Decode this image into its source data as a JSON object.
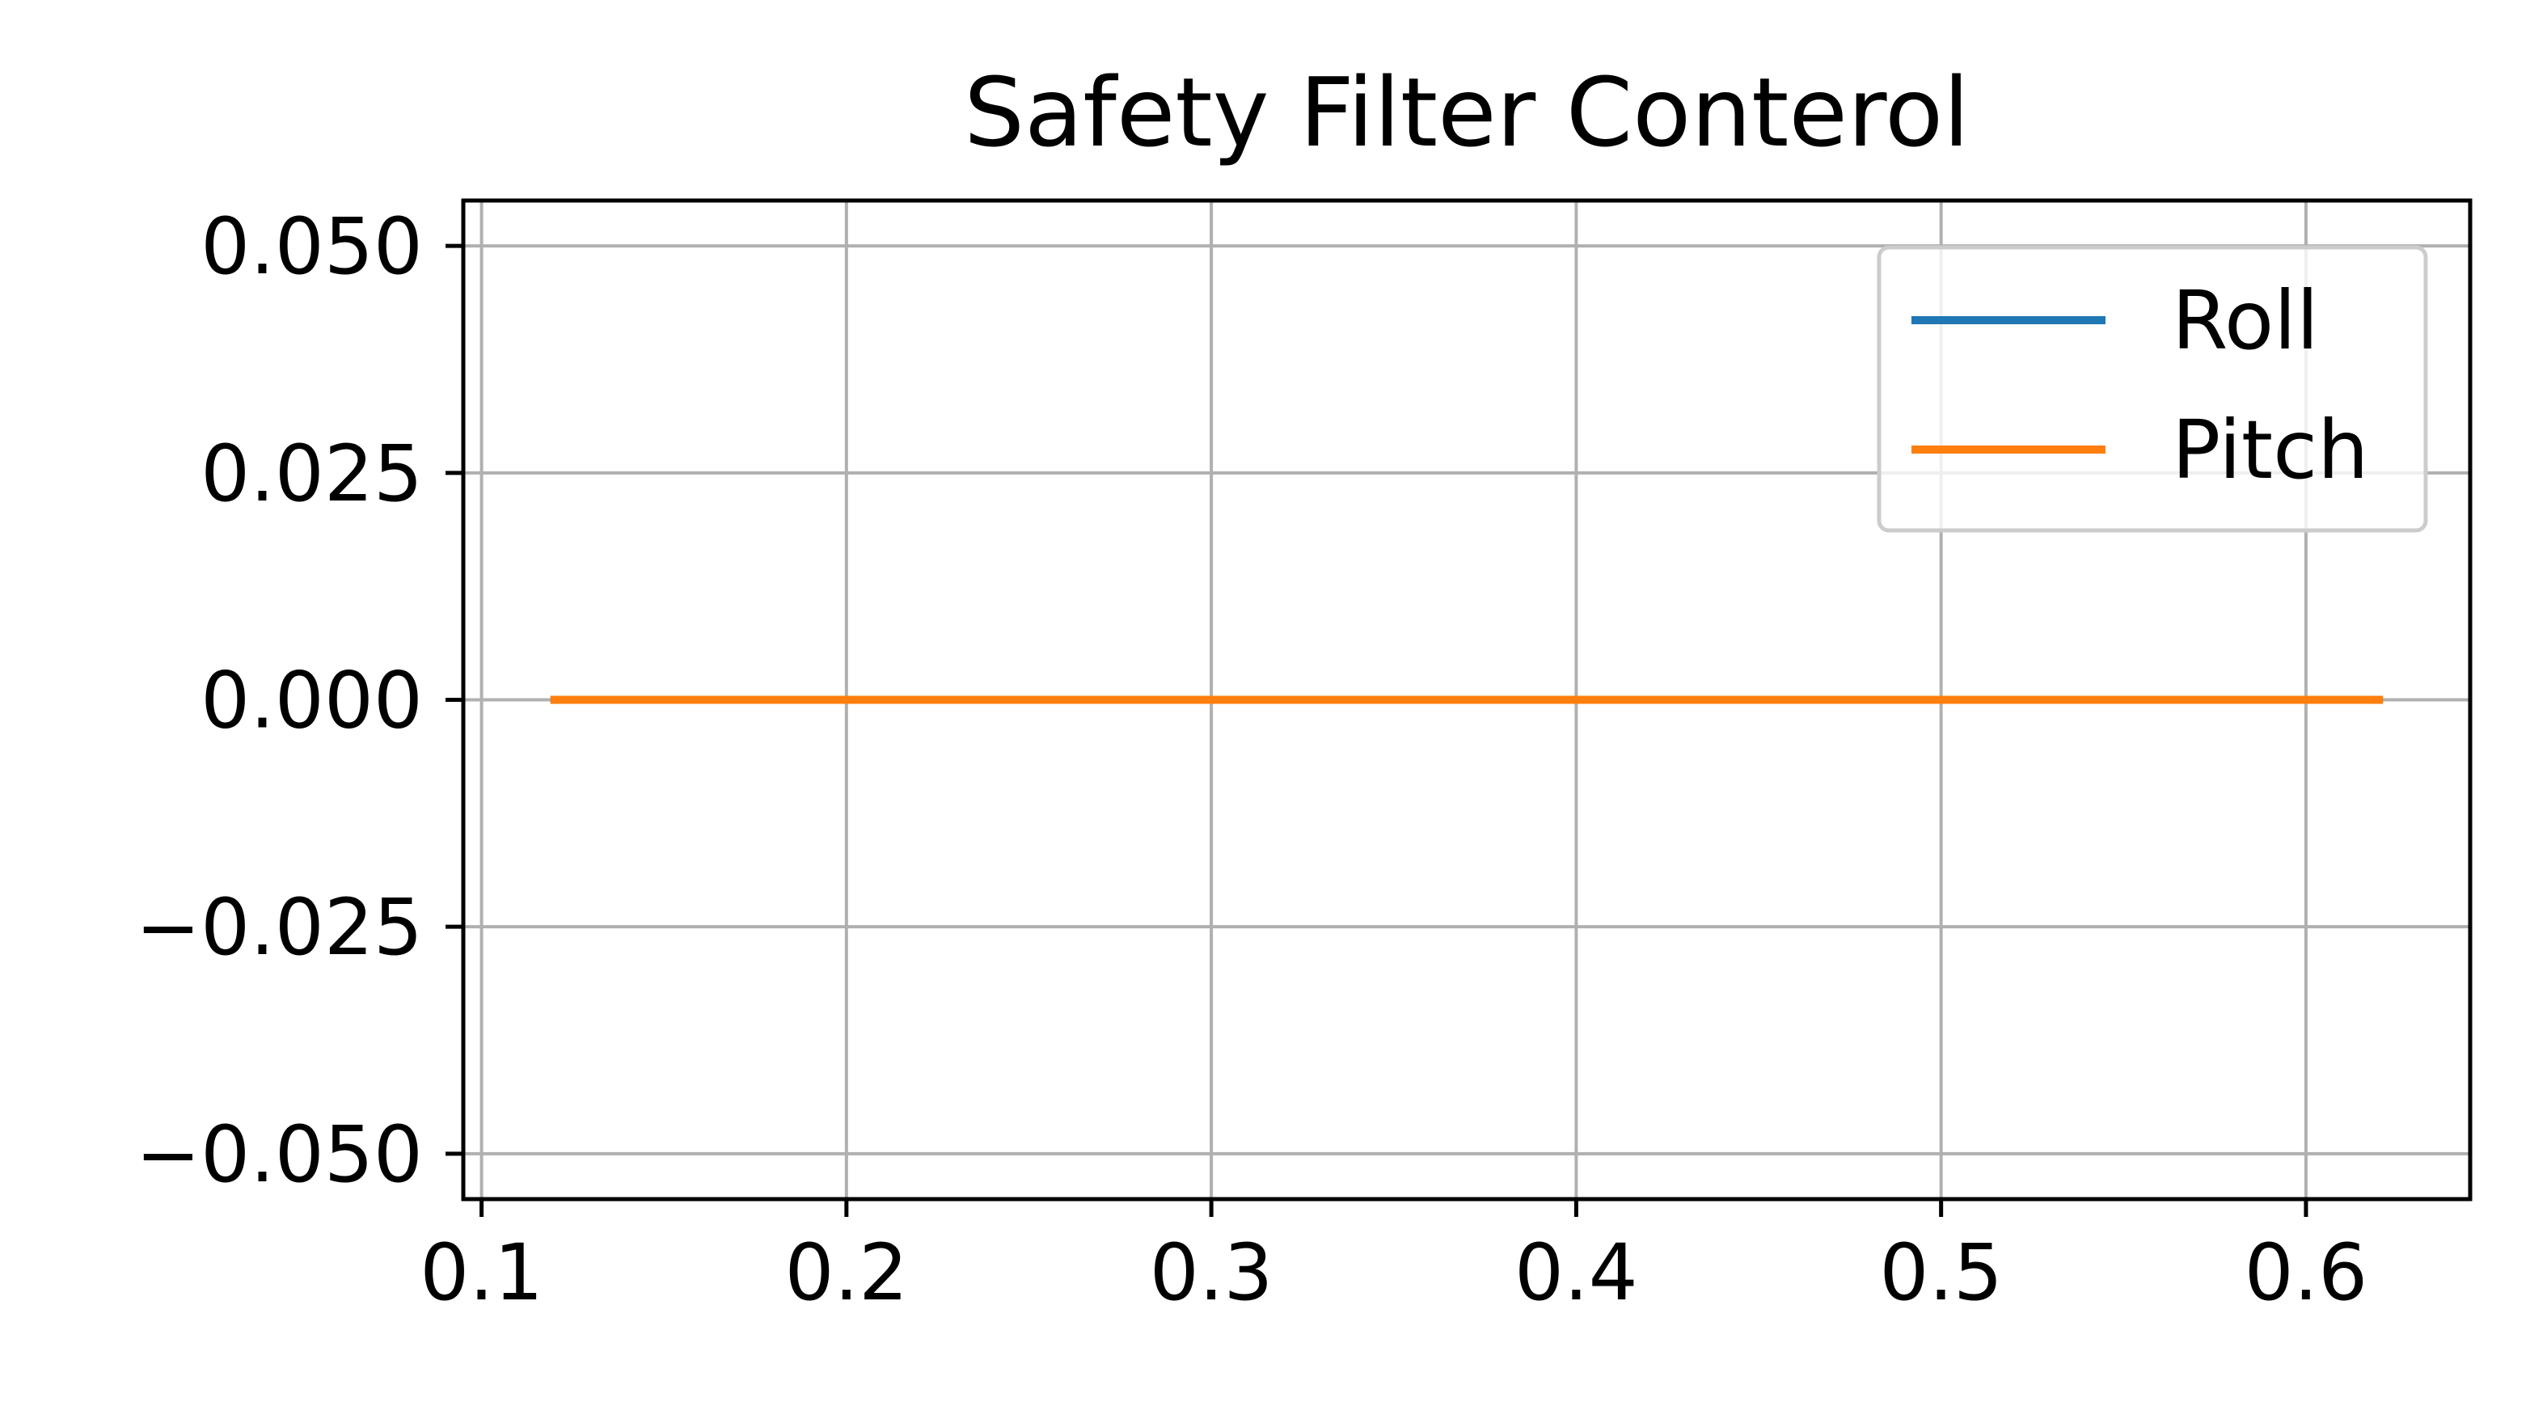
{
  "chart_data": {
    "type": "line",
    "title": "Safety Filter Conterol",
    "xlabel": "",
    "ylabel": "",
    "xlim": [
      0.095,
      0.645
    ],
    "ylim": [
      -0.055,
      0.055
    ],
    "xticks": [
      0.1,
      0.2,
      0.3,
      0.4,
      0.5,
      0.6
    ],
    "xtick_labels": [
      "0.1",
      "0.2",
      "0.3",
      "0.4",
      "0.5",
      "0.6"
    ],
    "yticks": [
      0.05,
      0.025,
      0.0,
      -0.025,
      -0.05
    ],
    "ytick_labels": [
      "0.050",
      "0.025",
      "0.000",
      "−0.025",
      "−0.050"
    ],
    "grid": true,
    "legend_position": "upper right",
    "series": [
      {
        "name": "Roll",
        "color": "#1f77b4",
        "x": [
          0.12,
          0.62
        ],
        "y": [
          0.0,
          0.0
        ]
      },
      {
        "name": "Pitch",
        "color": "#ff7f0e",
        "x": [
          0.12,
          0.62
        ],
        "y": [
          0.0,
          0.0
        ]
      }
    ]
  }
}
